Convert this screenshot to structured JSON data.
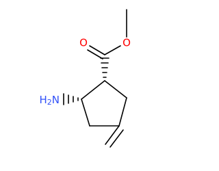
{
  "atoms": {
    "carbonyl_oxygen": "O",
    "ester_oxygen": "O",
    "amine": {
      "parts": [
        "H",
        "2",
        "N"
      ]
    }
  }
}
